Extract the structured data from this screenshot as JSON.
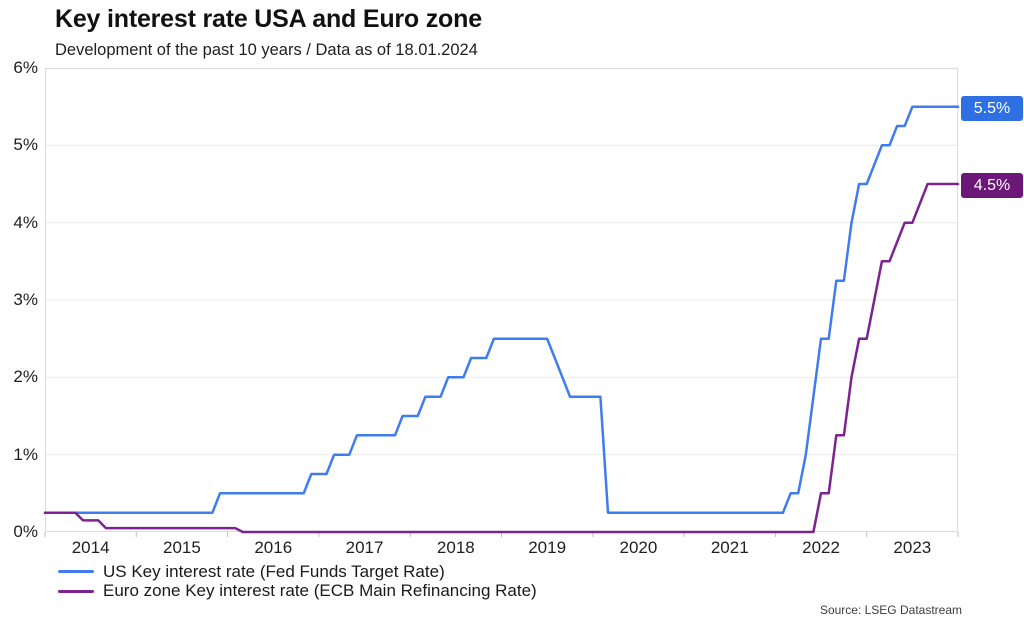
{
  "header": {
    "title": "Key interest rate USA and Euro zone",
    "subtitle": "Development of the past 10 years / Data as of 18.01.2024"
  },
  "source": "Source: LSEG Datastream",
  "chart_data": {
    "type": "line",
    "interpolation": "monthly points, straight connectors (step-like)",
    "x_range": [
      "2014-01",
      "2024-01"
    ],
    "x_tick_years": [
      "2014",
      "2015",
      "2016",
      "2017",
      "2018",
      "2019",
      "2020",
      "2021",
      "2022",
      "2023"
    ],
    "y_axis": {
      "min": 0,
      "max": 6,
      "tick_step": 1,
      "tick_labels": [
        "0%",
        "1%",
        "2%",
        "3%",
        "4%",
        "5%",
        "6%"
      ],
      "unit": "%"
    },
    "grid": "horizontal only, light gray",
    "legend_position": "bottom-left",
    "series": [
      {
        "name": "US Key interest rate (Fed Funds Target Rate)",
        "color": "#3f7cf0",
        "badge_color": "#2e6fe2",
        "end_label": "5.5%",
        "segments": [
          {
            "from": "2014-01",
            "to": "2015-11",
            "rate": 0.25
          },
          {
            "from": "2015-12",
            "to": "2016-11",
            "rate": 0.5
          },
          {
            "from": "2016-12",
            "to": "2017-02",
            "rate": 0.75
          },
          {
            "from": "2017-03",
            "to": "2017-05",
            "rate": 1.0
          },
          {
            "from": "2017-06",
            "to": "2017-11",
            "rate": 1.25
          },
          {
            "from": "2017-12",
            "to": "2018-02",
            "rate": 1.5
          },
          {
            "from": "2018-03",
            "to": "2018-05",
            "rate": 1.75
          },
          {
            "from": "2018-06",
            "to": "2018-08",
            "rate": 2.0
          },
          {
            "from": "2018-09",
            "to": "2018-11",
            "rate": 2.25
          },
          {
            "from": "2018-12",
            "to": "2019-07",
            "rate": 2.5
          },
          {
            "from": "2019-08",
            "to": "2019-08",
            "rate": 2.25
          },
          {
            "from": "2019-09",
            "to": "2019-09",
            "rate": 2.0
          },
          {
            "from": "2019-10",
            "to": "2020-02",
            "rate": 1.75
          },
          {
            "from": "2020-03",
            "to": "2022-02",
            "rate": 0.25
          },
          {
            "from": "2022-03",
            "to": "2022-04",
            "rate": 0.5
          },
          {
            "from": "2022-05",
            "to": "2022-05",
            "rate": 1.0
          },
          {
            "from": "2022-06",
            "to": "2022-06",
            "rate": 1.75
          },
          {
            "from": "2022-07",
            "to": "2022-08",
            "rate": 2.5
          },
          {
            "from": "2022-09",
            "to": "2022-10",
            "rate": 3.25
          },
          {
            "from": "2022-11",
            "to": "2022-11",
            "rate": 4.0
          },
          {
            "from": "2022-12",
            "to": "2023-01",
            "rate": 4.5
          },
          {
            "from": "2023-02",
            "to": "2023-02",
            "rate": 4.75
          },
          {
            "from": "2023-03",
            "to": "2023-04",
            "rate": 5.0
          },
          {
            "from": "2023-05",
            "to": "2023-06",
            "rate": 5.25
          },
          {
            "from": "2023-07",
            "to": "2024-01",
            "rate": 5.5
          }
        ]
      },
      {
        "name": "Euro zone Key interest rate (ECB Main Refinancing Rate)",
        "color": "#7d2391",
        "badge_color": "#6b1878",
        "end_label": "4.5%",
        "segments": [
          {
            "from": "2014-01",
            "to": "2014-05",
            "rate": 0.25
          },
          {
            "from": "2014-06",
            "to": "2014-08",
            "rate": 0.15
          },
          {
            "from": "2014-09",
            "to": "2016-02",
            "rate": 0.05
          },
          {
            "from": "2016-03",
            "to": "2022-06",
            "rate": 0.0
          },
          {
            "from": "2022-07",
            "to": "2022-08",
            "rate": 0.5
          },
          {
            "from": "2022-09",
            "to": "2022-10",
            "rate": 1.25
          },
          {
            "from": "2022-11",
            "to": "2022-11",
            "rate": 2.0
          },
          {
            "from": "2022-12",
            "to": "2023-01",
            "rate": 2.5
          },
          {
            "from": "2023-02",
            "to": "2023-02",
            "rate": 3.0
          },
          {
            "from": "2023-03",
            "to": "2023-04",
            "rate": 3.5
          },
          {
            "from": "2023-05",
            "to": "2023-05",
            "rate": 3.75
          },
          {
            "from": "2023-06",
            "to": "2023-07",
            "rate": 4.0
          },
          {
            "from": "2023-08",
            "to": "2023-08",
            "rate": 4.25
          },
          {
            "from": "2023-09",
            "to": "2024-01",
            "rate": 4.5
          }
        ]
      }
    ]
  }
}
